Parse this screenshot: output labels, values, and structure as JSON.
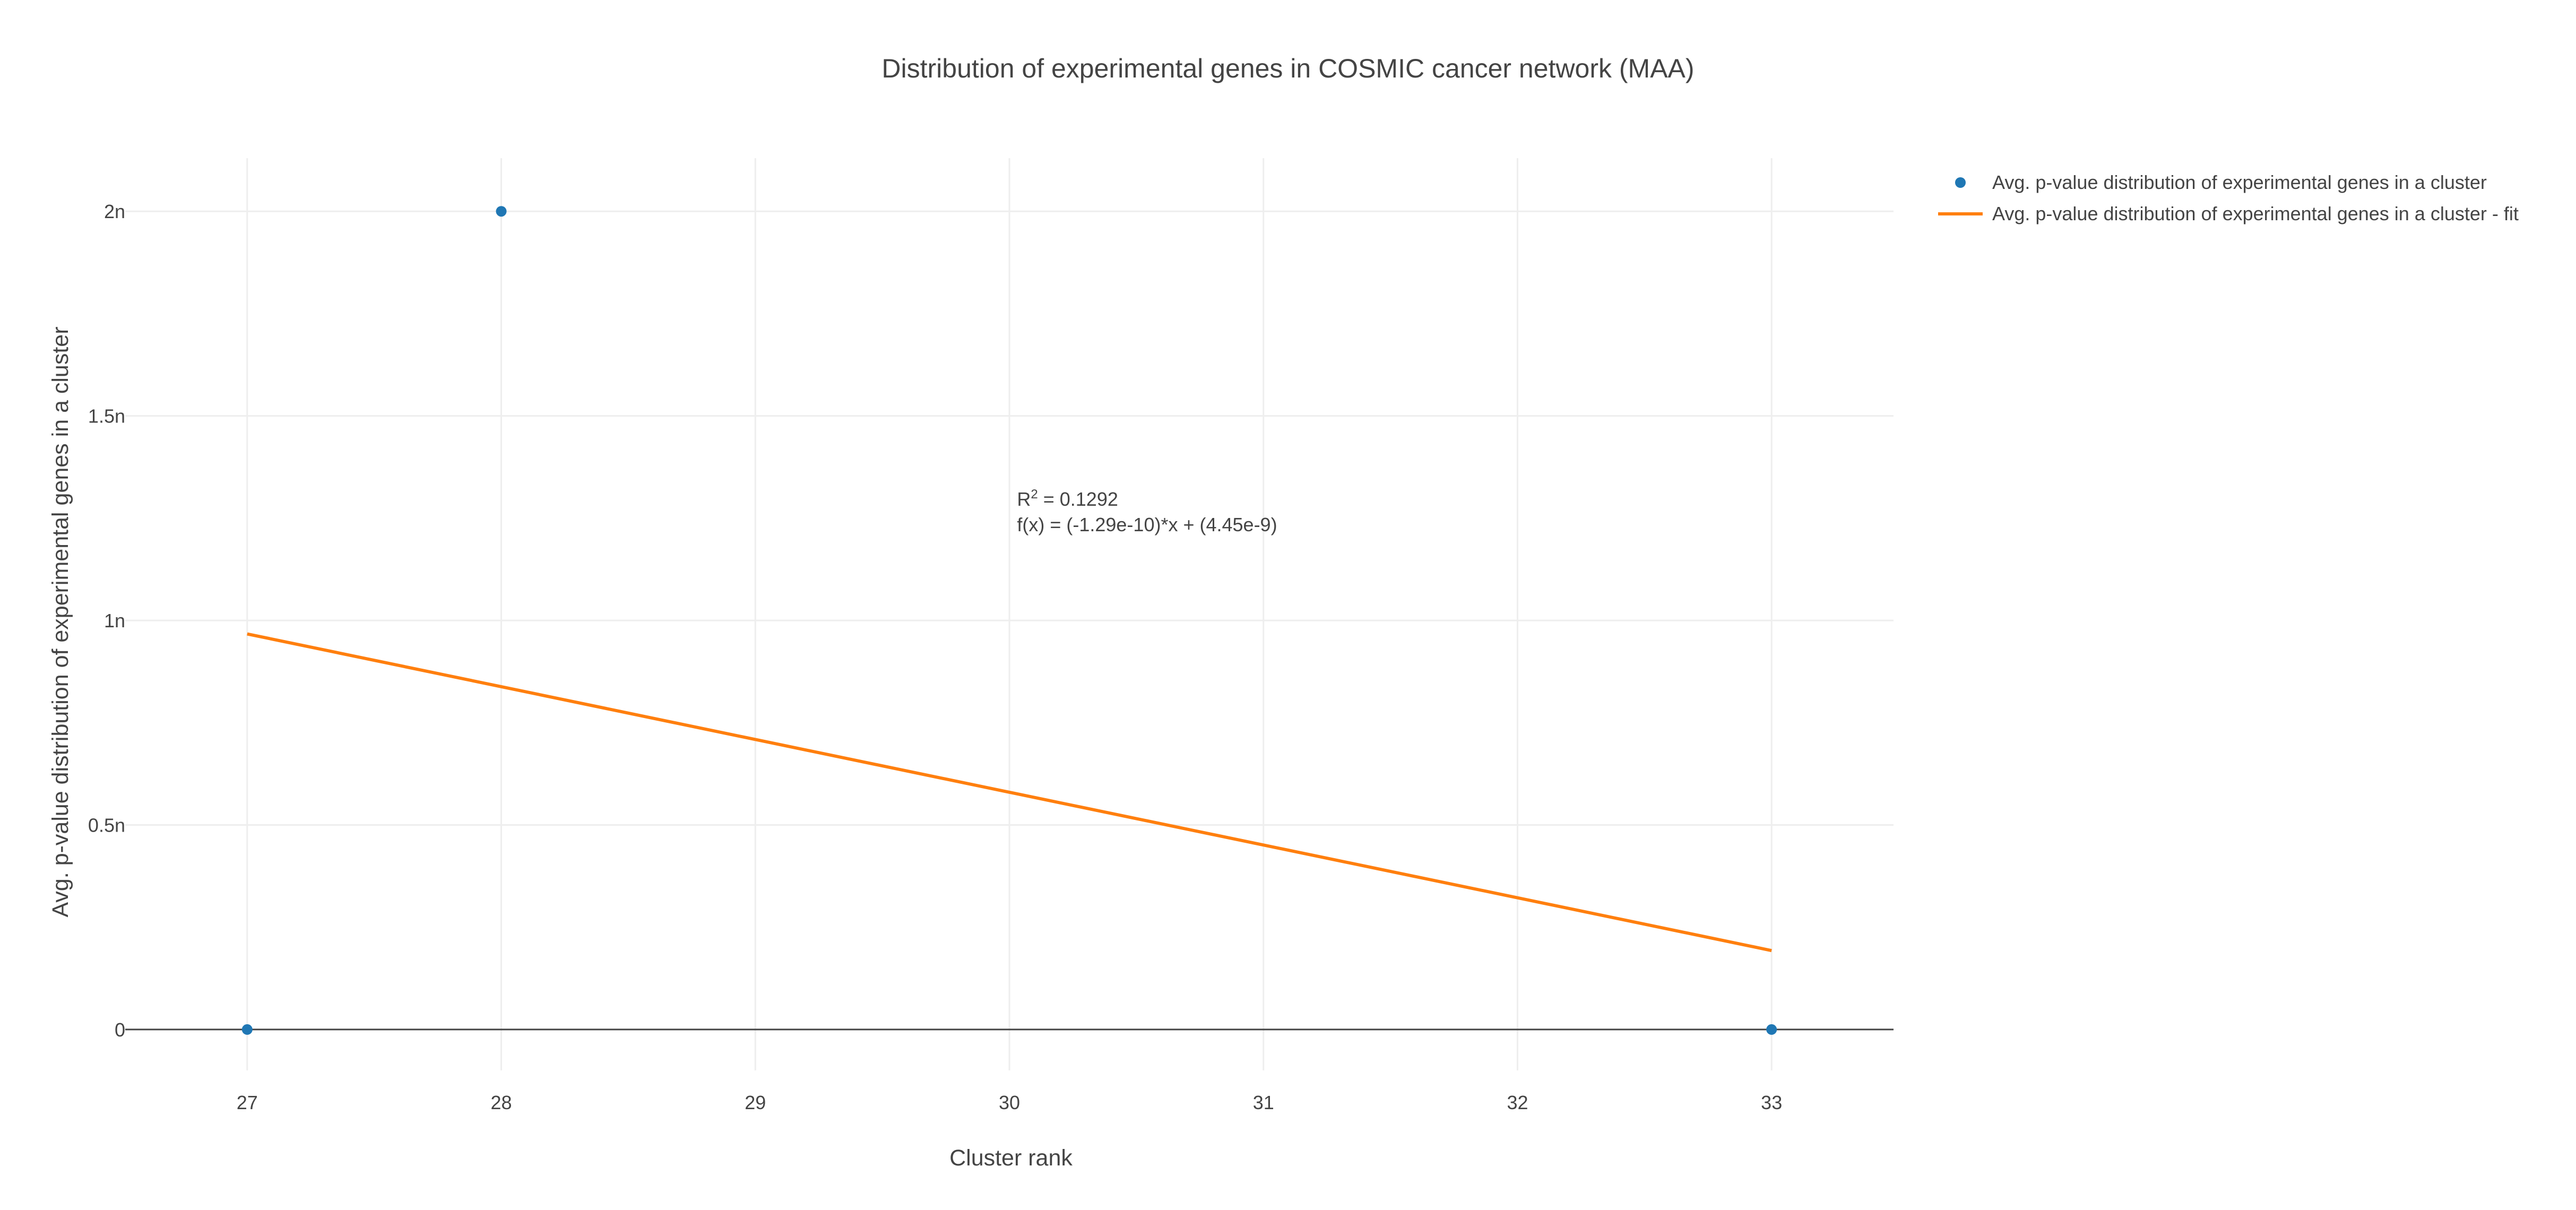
{
  "chart_data": {
    "type": "scatter",
    "title": "Distribution of experimental genes in COSMIC cancer network (MAA)",
    "xlabel": "Cluster rank",
    "ylabel": "Avg. p-value distribution of experimental genes in a cluster",
    "xlim": [
      26.52,
      33.48
    ],
    "ylim": [
      -1e-10,
      2.13e-09
    ],
    "x_ticks": [
      27,
      28,
      29,
      30,
      31,
      32,
      33
    ],
    "x_tick_labels": [
      "27",
      "28",
      "29",
      "30",
      "31",
      "32",
      "33"
    ],
    "y_ticks": [
      0,
      5e-10,
      1e-09,
      1.5e-09,
      2e-09
    ],
    "y_tick_labels": [
      "0",
      "0.5n",
      "1n",
      "1.5n",
      "2n"
    ],
    "grid": true,
    "legend_position": "top-right",
    "series": [
      {
        "name": "Avg. p-value distribution of experimental genes in a cluster",
        "mode": "markers",
        "color": "#1f77b4",
        "x": [
          27,
          28,
          33
        ],
        "y": [
          0,
          2e-09,
          0
        ]
      },
      {
        "name": "Avg. p-value distribution of experimental genes in a cluster - fit",
        "mode": "lines",
        "color": "#ff7f0e",
        "x": [
          27,
          33
        ],
        "y": [
          9.67e-10,
          1.93e-10
        ]
      }
    ],
    "annotation": {
      "r2_prefix": "R",
      "r2_sup": "2",
      "r2_value": " = 0.1292",
      "formula": "f(x) = (-1.29e-10)*x + (4.45e-9)",
      "x": 30.03,
      "y": 1.28e-09
    }
  }
}
